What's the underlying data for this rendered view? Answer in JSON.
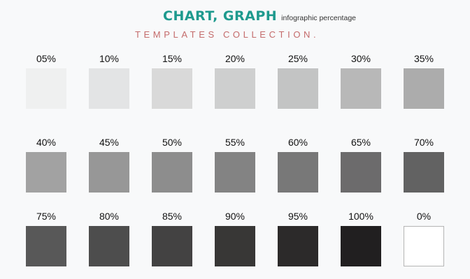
{
  "header": {
    "title": "CHART, GRAPH",
    "title_sub": "infographic percentage",
    "subtitle": "TEMPLATES COLLECTION."
  },
  "colors": {
    "title": "#1e9a8e",
    "subtitle": "#c46b6b",
    "background": "#f8f9fa"
  },
  "swatches": [
    {
      "label": "05%",
      "color": "#eff0f0"
    },
    {
      "label": "10%",
      "color": "#e3e4e5"
    },
    {
      "label": "15%",
      "color": "#d9d9d9"
    },
    {
      "label": "20%",
      "color": "#cecfcf"
    },
    {
      "label": "25%",
      "color": "#c3c4c4"
    },
    {
      "label": "30%",
      "color": "#b8b8b8"
    },
    {
      "label": "35%",
      "color": "#acacac"
    },
    {
      "label": "40%",
      "color": "#a2a2a2"
    },
    {
      "label": "45%",
      "color": "#979797"
    },
    {
      "label": "50%",
      "color": "#8d8d8d"
    },
    {
      "label": "55%",
      "color": "#838383"
    },
    {
      "label": "60%",
      "color": "#787878"
    },
    {
      "label": "65%",
      "color": "#6c6b6c"
    },
    {
      "label": "70%",
      "color": "#626262"
    },
    {
      "label": "75%",
      "color": "#585858"
    },
    {
      "label": "80%",
      "color": "#4d4d4d"
    },
    {
      "label": "85%",
      "color": "#434242"
    },
    {
      "label": "90%",
      "color": "#383736"
    },
    {
      "label": "95%",
      "color": "#2c2a2a"
    },
    {
      "label": "100%",
      "color": "#211f20"
    },
    {
      "label": "0%",
      "color": "#ffffff",
      "outlined": true
    }
  ]
}
